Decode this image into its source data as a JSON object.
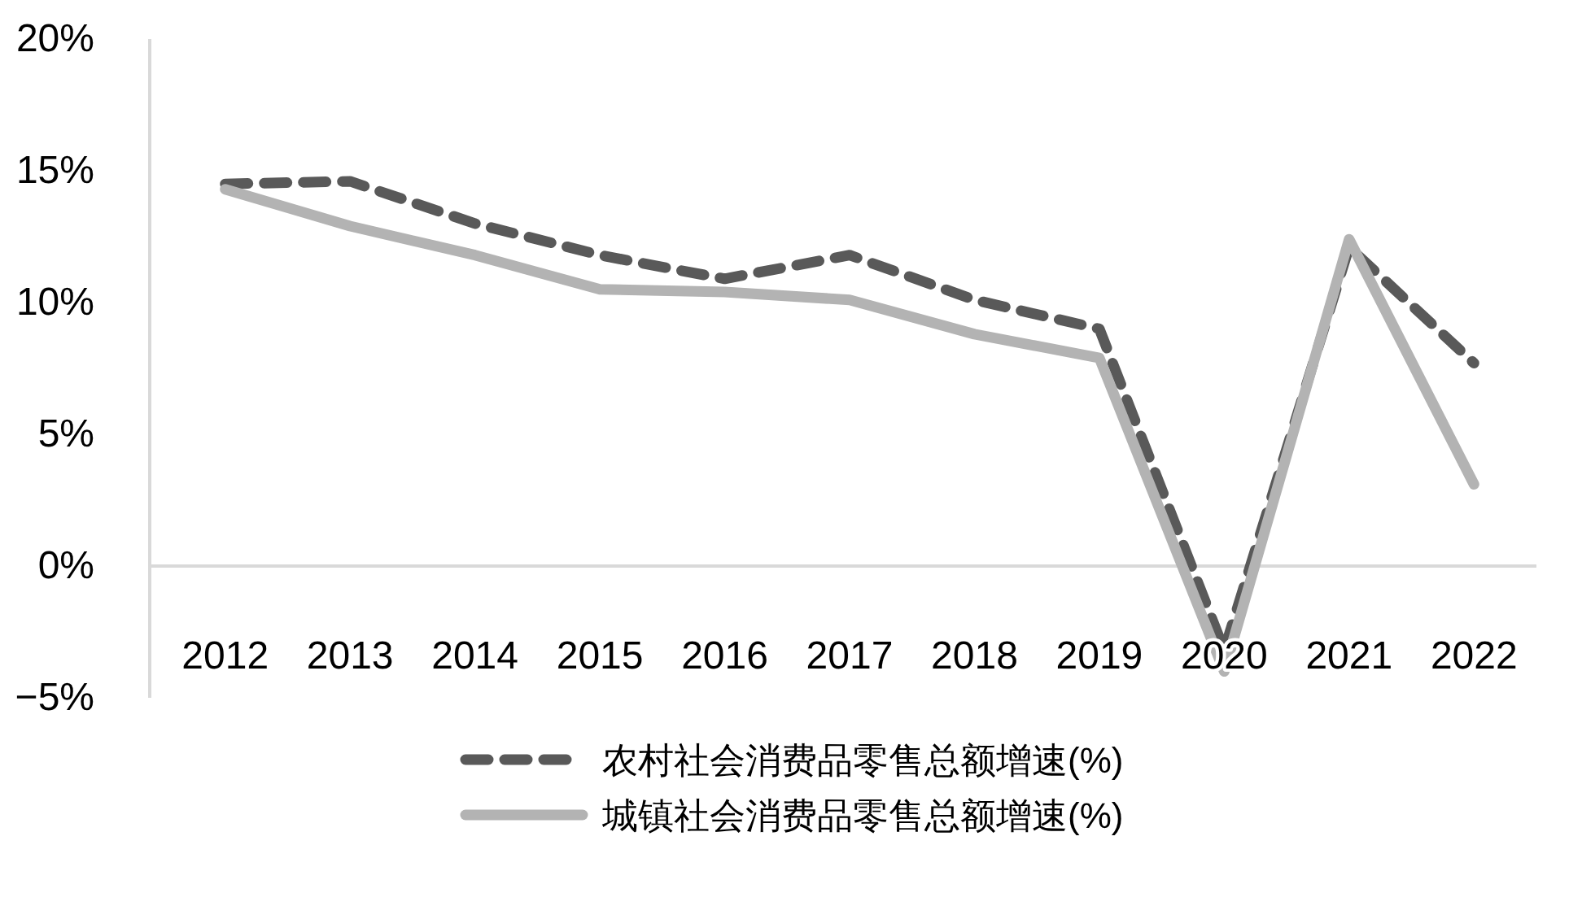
{
  "chart_data": {
    "type": "line",
    "categories": [
      "2012",
      "2013",
      "2014",
      "2015",
      "2016",
      "2017",
      "2018",
      "2019",
      "2020",
      "2021",
      "2022"
    ],
    "series": [
      {
        "name": "农村社会消费品零售总额增速(%)",
        "color": "#595959",
        "line_style": "dashed",
        "values": [
          14.5,
          14.6,
          13.0,
          11.8,
          10.9,
          11.8,
          10.1,
          9.0,
          -3.2,
          12.1,
          7.7
        ]
      },
      {
        "name": "城镇社会消费品零售总额增速(%)",
        "color": "#b3b3b3",
        "line_style": "solid",
        "values": [
          14.3,
          12.9,
          11.8,
          10.5,
          10.4,
          10.1,
          8.8,
          7.9,
          -4.0,
          12.4,
          3.1
        ]
      }
    ],
    "ylim": [
      -5,
      20
    ],
    "yticks": [
      {
        "value": -5,
        "label": "−5%"
      },
      {
        "value": 0,
        "label": "0%"
      },
      {
        "value": 5,
        "label": "5%"
      },
      {
        "value": 10,
        "label": "10%"
      },
      {
        "value": 15,
        "label": "15%"
      },
      {
        "value": 20,
        "label": "20%"
      }
    ],
    "grid": false,
    "legend": "bottom",
    "marker": "none"
  }
}
